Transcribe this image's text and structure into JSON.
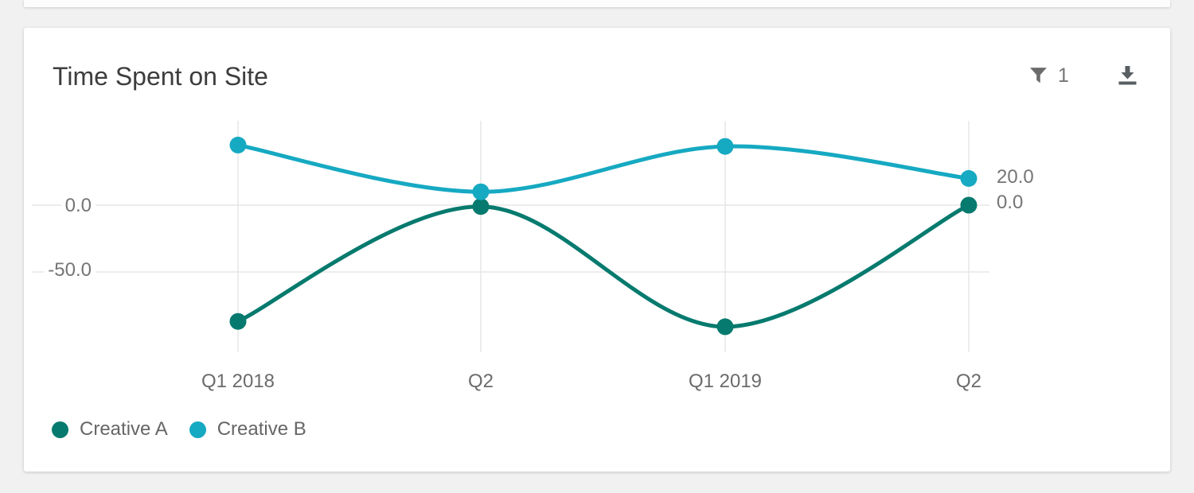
{
  "card": {
    "title": "Time Spent on Site",
    "filter_count": "1"
  },
  "toolbar_icons": [
    "filter-funnel-icon",
    "download-icon"
  ],
  "chart_data": {
    "type": "line",
    "smooth": true,
    "title": "Time Spent on Site",
    "categories": [
      "Q1 2018",
      "Q2",
      "Q1 2019",
      "Q2"
    ],
    "series": [
      {
        "name": "Creative A",
        "color": "#067a6e",
        "values": [
          -87,
          -1,
          -91,
          0
        ],
        "end_label": "0.0"
      },
      {
        "name": "Creative B",
        "color": "#16a9c2",
        "values": [
          45,
          10,
          44,
          20
        ],
        "end_label": "20.0"
      }
    ],
    "y_axis": {
      "ticks": [
        0,
        -50
      ],
      "tick_labels": [
        "0.0",
        "-50.0"
      ],
      "ylim": [
        -105,
        55
      ]
    },
    "grid": "on",
    "legend_position": "bottom-left",
    "colors": {
      "gridline": "#e7e7e7",
      "axis_text": "#757575",
      "title_text": "#3d3d3d",
      "icon_gray": "#616161"
    }
  }
}
